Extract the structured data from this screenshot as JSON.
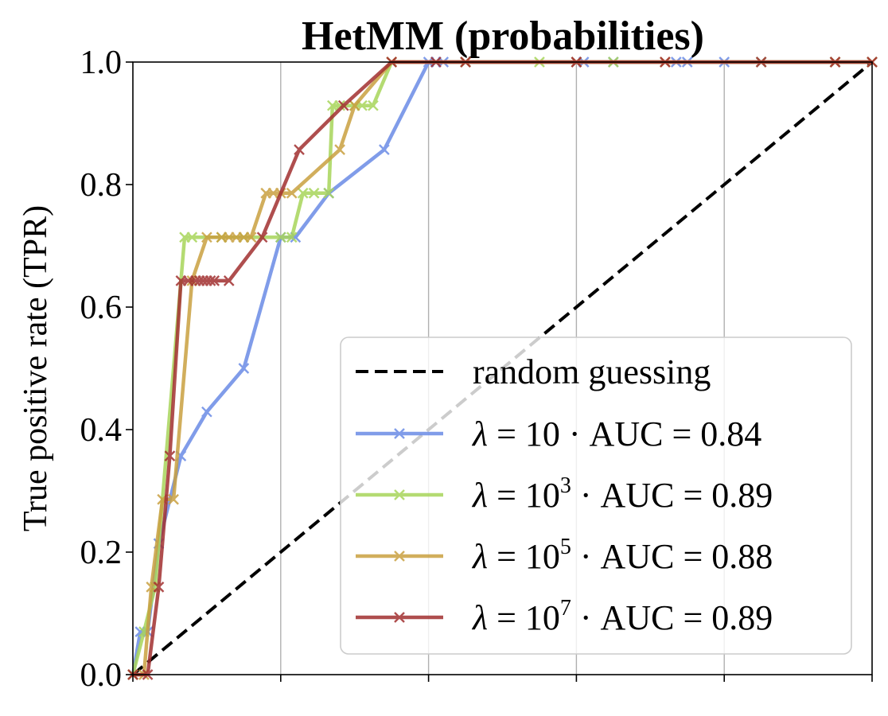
{
  "chart_data": {
    "type": "line",
    "title": "HetMM (probabilities)",
    "xlabel": "",
    "ylabel": "True positive rate (TPR)",
    "xlim": [
      0,
      1
    ],
    "ylim": [
      0,
      1
    ],
    "grid": "vertical",
    "xticks": [
      0,
      0.2,
      0.4,
      0.6,
      0.8,
      1.0
    ],
    "yticks": [
      0.0,
      0.2,
      0.4,
      0.6,
      0.8,
      1.0
    ],
    "ytick_labels": [
      "0.0",
      "0.2",
      "0.4",
      "0.6",
      "0.8",
      "1.0"
    ],
    "legend_position": "lower-right",
    "baseline": {
      "name": "random guessing",
      "x": [
        0,
        1
      ],
      "y": [
        0,
        1
      ],
      "color": "#000000",
      "style": "dashed"
    },
    "series": [
      {
        "name": "λ = 10 · AUC = 0.84",
        "lambda_base": "10",
        "lambda_exp": "",
        "auc_text": " · AUC = 0.84",
        "color": "#6a8be6",
        "x": [
          0.0,
          0.01,
          0.02,
          0.035,
          0.065,
          0.1,
          0.15,
          0.2,
          0.22,
          0.265,
          0.34,
          0.4,
          0.41,
          0.42,
          0.45,
          0.6,
          0.61,
          0.65,
          0.735,
          0.75,
          0.8,
          0.85,
          0.95,
          1.0
        ],
        "y": [
          0.0,
          0.07,
          0.07,
          0.214,
          0.357,
          0.429,
          0.5,
          0.714,
          0.714,
          0.786,
          0.857,
          1.0,
          1.0,
          1.0,
          1.0,
          1.0,
          1.0,
          1.0,
          1.0,
          1.0,
          1.0,
          1.0,
          1.0,
          1.0
        ]
      },
      {
        "name": "λ = 10³ · AUC = 0.89",
        "lambda_base": "10",
        "lambda_exp": "3",
        "auc_text": " · AUC = 0.89",
        "color": "#a8d55a",
        "x": [
          0.0,
          0.015,
          0.03,
          0.07,
          0.08,
          0.12,
          0.15,
          0.2,
          0.215,
          0.23,
          0.245,
          0.265,
          0.27,
          0.28,
          0.3,
          0.31,
          0.325,
          0.35,
          0.45,
          0.55,
          0.65,
          0.85,
          0.95,
          1.0
        ],
        "y": [
          0.0,
          0.07,
          0.143,
          0.714,
          0.714,
          0.714,
          0.714,
          0.714,
          0.714,
          0.786,
          0.786,
          0.786,
          0.929,
          0.929,
          0.929,
          0.929,
          0.929,
          1.0,
          1.0,
          1.0,
          1.0,
          1.0,
          1.0,
          1.0
        ]
      },
      {
        "name": "λ = 10⁵ · AUC = 0.88",
        "lambda_base": "10",
        "lambda_exp": "5",
        "auc_text": " · AUC = 0.88",
        "color": "#c9a040",
        "x": [
          0.0,
          0.015,
          0.025,
          0.04,
          0.055,
          0.08,
          0.1,
          0.12,
          0.13,
          0.14,
          0.15,
          0.16,
          0.18,
          0.19,
          0.2,
          0.215,
          0.28,
          0.3,
          0.35,
          0.45,
          0.6,
          0.72,
          0.95,
          1.0
        ],
        "y": [
          0.0,
          0.0,
          0.143,
          0.286,
          0.286,
          0.643,
          0.714,
          0.714,
          0.714,
          0.714,
          0.714,
          0.714,
          0.786,
          0.786,
          0.786,
          0.786,
          0.857,
          0.929,
          1.0,
          1.0,
          1.0,
          1.0,
          1.0,
          1.0
        ]
      },
      {
        "name": "λ = 10⁷ · AUC = 0.89",
        "lambda_base": "10",
        "lambda_exp": "7",
        "auc_text": " · AUC = 0.89",
        "color": "#a23030",
        "x": [
          0.0,
          0.02,
          0.035,
          0.05,
          0.065,
          0.075,
          0.085,
          0.09,
          0.095,
          0.1,
          0.105,
          0.11,
          0.13,
          0.175,
          0.225,
          0.285,
          0.35,
          0.41,
          0.45,
          0.6,
          0.72,
          0.85,
          0.95,
          1.0
        ],
        "y": [
          0.0,
          0.0,
          0.143,
          0.357,
          0.643,
          0.643,
          0.643,
          0.643,
          0.643,
          0.643,
          0.643,
          0.643,
          0.643,
          0.714,
          0.857,
          0.929,
          1.0,
          1.0,
          1.0,
          1.0,
          1.0,
          1.0,
          1.0,
          1.0
        ]
      }
    ]
  }
}
